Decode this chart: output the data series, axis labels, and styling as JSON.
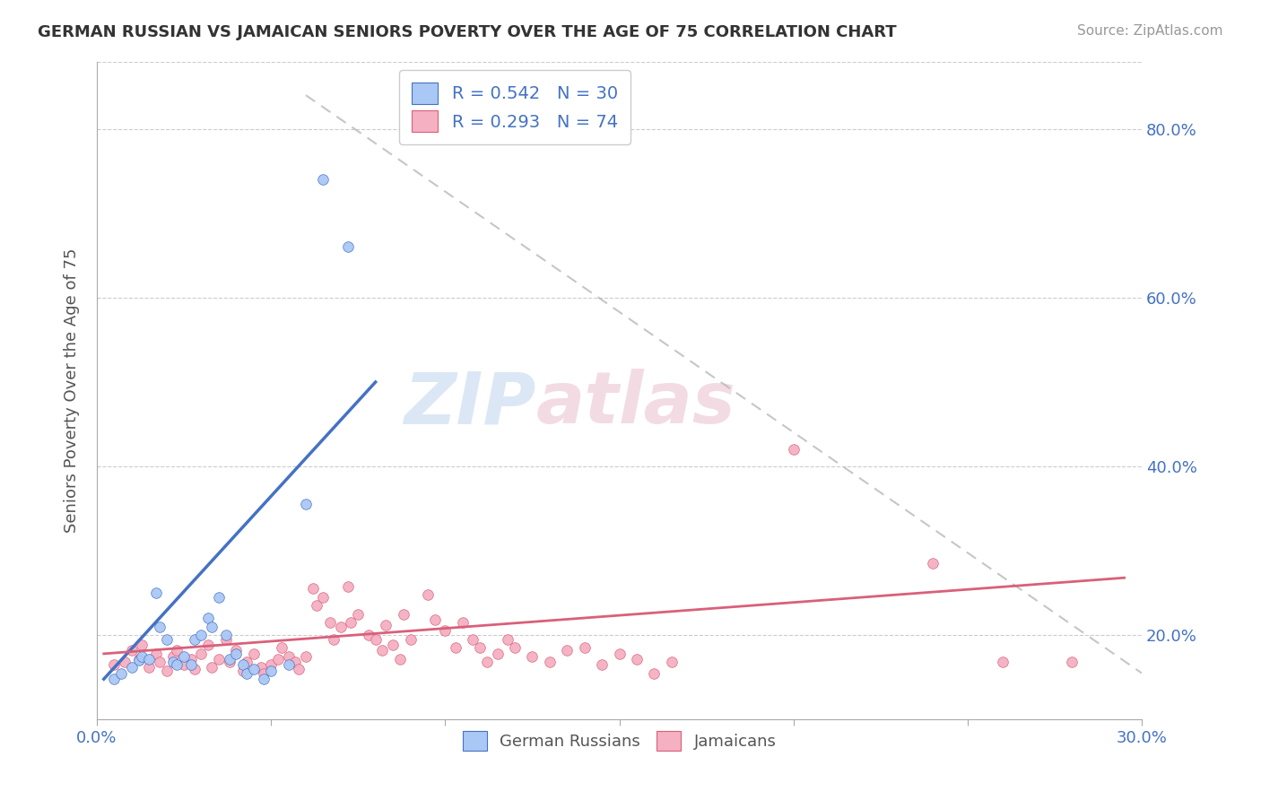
{
  "title": "GERMAN RUSSIAN VS JAMAICAN SENIORS POVERTY OVER THE AGE OF 75 CORRELATION CHART",
  "source": "Source: ZipAtlas.com",
  "ylabel": "Seniors Poverty Over the Age of 75",
  "xlim": [
    0.0,
    0.3
  ],
  "ylim": [
    0.1,
    0.88
  ],
  "ytick_positions": [
    0.2,
    0.4,
    0.6,
    0.8
  ],
  "ytick_labels": [
    "20.0%",
    "40.0%",
    "60.0%",
    "80.0%"
  ],
  "R_blue": 0.542,
  "N_blue": 30,
  "R_pink": 0.293,
  "N_pink": 74,
  "blue_color": "#aac8f5",
  "pink_color": "#f5b0c2",
  "blue_line_color": "#4472c4",
  "pink_line_color": "#d9607a",
  "dash_line_color": "#b8b8b8",
  "legend_text_color": "#4472c4",
  "watermark_blue": "#c5d8f0",
  "watermark_pink": "#e8b8c8",
  "blue_scatter": [
    [
      0.005,
      0.148
    ],
    [
      0.007,
      0.155
    ],
    [
      0.01,
      0.162
    ],
    [
      0.012,
      0.17
    ],
    [
      0.013,
      0.175
    ],
    [
      0.015,
      0.172
    ],
    [
      0.017,
      0.25
    ],
    [
      0.018,
      0.21
    ],
    [
      0.02,
      0.195
    ],
    [
      0.022,
      0.168
    ],
    [
      0.023,
      0.165
    ],
    [
      0.025,
      0.175
    ],
    [
      0.027,
      0.165
    ],
    [
      0.028,
      0.195
    ],
    [
      0.03,
      0.2
    ],
    [
      0.032,
      0.22
    ],
    [
      0.033,
      0.21
    ],
    [
      0.035,
      0.245
    ],
    [
      0.037,
      0.2
    ],
    [
      0.038,
      0.172
    ],
    [
      0.04,
      0.178
    ],
    [
      0.042,
      0.165
    ],
    [
      0.043,
      0.155
    ],
    [
      0.045,
      0.16
    ],
    [
      0.048,
      0.148
    ],
    [
      0.05,
      0.158
    ],
    [
      0.055,
      0.165
    ],
    [
      0.06,
      0.355
    ],
    [
      0.065,
      0.74
    ],
    [
      0.072,
      0.66
    ]
  ],
  "pink_scatter": [
    [
      0.005,
      0.165
    ],
    [
      0.008,
      0.168
    ],
    [
      0.01,
      0.182
    ],
    [
      0.012,
      0.172
    ],
    [
      0.013,
      0.188
    ],
    [
      0.015,
      0.162
    ],
    [
      0.017,
      0.178
    ],
    [
      0.018,
      0.168
    ],
    [
      0.02,
      0.158
    ],
    [
      0.022,
      0.175
    ],
    [
      0.023,
      0.182
    ],
    [
      0.025,
      0.165
    ],
    [
      0.027,
      0.172
    ],
    [
      0.028,
      0.16
    ],
    [
      0.03,
      0.178
    ],
    [
      0.032,
      0.188
    ],
    [
      0.033,
      0.162
    ],
    [
      0.035,
      0.172
    ],
    [
      0.037,
      0.195
    ],
    [
      0.038,
      0.168
    ],
    [
      0.04,
      0.182
    ],
    [
      0.042,
      0.158
    ],
    [
      0.043,
      0.168
    ],
    [
      0.045,
      0.178
    ],
    [
      0.047,
      0.162
    ],
    [
      0.048,
      0.155
    ],
    [
      0.05,
      0.165
    ],
    [
      0.052,
      0.172
    ],
    [
      0.053,
      0.185
    ],
    [
      0.055,
      0.175
    ],
    [
      0.057,
      0.168
    ],
    [
      0.058,
      0.16
    ],
    [
      0.06,
      0.175
    ],
    [
      0.062,
      0.255
    ],
    [
      0.063,
      0.235
    ],
    [
      0.065,
      0.245
    ],
    [
      0.067,
      0.215
    ],
    [
      0.068,
      0.195
    ],
    [
      0.07,
      0.21
    ],
    [
      0.072,
      0.258
    ],
    [
      0.073,
      0.215
    ],
    [
      0.075,
      0.225
    ],
    [
      0.078,
      0.2
    ],
    [
      0.08,
      0.195
    ],
    [
      0.082,
      0.182
    ],
    [
      0.083,
      0.212
    ],
    [
      0.085,
      0.188
    ],
    [
      0.087,
      0.172
    ],
    [
      0.088,
      0.225
    ],
    [
      0.09,
      0.195
    ],
    [
      0.095,
      0.248
    ],
    [
      0.097,
      0.218
    ],
    [
      0.1,
      0.205
    ],
    [
      0.103,
      0.185
    ],
    [
      0.105,
      0.215
    ],
    [
      0.108,
      0.195
    ],
    [
      0.11,
      0.185
    ],
    [
      0.112,
      0.168
    ],
    [
      0.115,
      0.178
    ],
    [
      0.118,
      0.195
    ],
    [
      0.12,
      0.185
    ],
    [
      0.125,
      0.175
    ],
    [
      0.13,
      0.168
    ],
    [
      0.135,
      0.182
    ],
    [
      0.14,
      0.185
    ],
    [
      0.145,
      0.165
    ],
    [
      0.15,
      0.178
    ],
    [
      0.155,
      0.172
    ],
    [
      0.16,
      0.155
    ],
    [
      0.165,
      0.168
    ],
    [
      0.2,
      0.42
    ],
    [
      0.24,
      0.285
    ],
    [
      0.26,
      0.168
    ],
    [
      0.28,
      0.168
    ]
  ],
  "blue_line_pts": [
    [
      0.002,
      0.148
    ],
    [
      0.08,
      0.5
    ]
  ],
  "pink_line_pts": [
    [
      0.002,
      0.178
    ],
    [
      0.295,
      0.268
    ]
  ],
  "dash_line_pts": [
    [
      0.06,
      0.84
    ],
    [
      0.3,
      0.155
    ]
  ]
}
